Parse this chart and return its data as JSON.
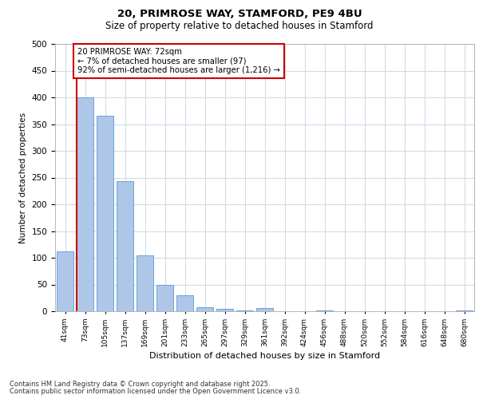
{
  "title_line1": "20, PRIMROSE WAY, STAMFORD, PE9 4BU",
  "title_line2": "Size of property relative to detached houses in Stamford",
  "xlabel": "Distribution of detached houses by size in Stamford",
  "ylabel": "Number of detached properties",
  "categories": [
    "41sqm",
    "73sqm",
    "105sqm",
    "137sqm",
    "169sqm",
    "201sqm",
    "233sqm",
    "265sqm",
    "297sqm",
    "329sqm",
    "361sqm",
    "392sqm",
    "424sqm",
    "456sqm",
    "488sqm",
    "520sqm",
    "552sqm",
    "584sqm",
    "616sqm",
    "648sqm",
    "680sqm"
  ],
  "values": [
    112,
    400,
    365,
    243,
    105,
    50,
    30,
    8,
    5,
    2,
    6,
    0,
    0,
    1,
    0,
    0,
    0,
    0,
    0,
    0,
    1
  ],
  "bar_color": "#aec6e8",
  "bar_edge_color": "#5b9bd5",
  "highlight_line_color": "#cc0000",
  "annotation_text": "20 PRIMROSE WAY: 72sqm\n← 7% of detached houses are smaller (97)\n92% of semi-detached houses are larger (1,216) →",
  "annotation_box_color": "#ffffff",
  "annotation_box_edge": "#cc0000",
  "ylim": [
    0,
    500
  ],
  "yticks": [
    0,
    50,
    100,
    150,
    200,
    250,
    300,
    350,
    400,
    450,
    500
  ],
  "footer_line1": "Contains HM Land Registry data © Crown copyright and database right 2025.",
  "footer_line2": "Contains public sector information licensed under the Open Government Licence v3.0.",
  "bg_color": "#ffffff",
  "grid_color": "#d0dce8",
  "figsize": [
    6.0,
    5.0
  ],
  "dpi": 100
}
